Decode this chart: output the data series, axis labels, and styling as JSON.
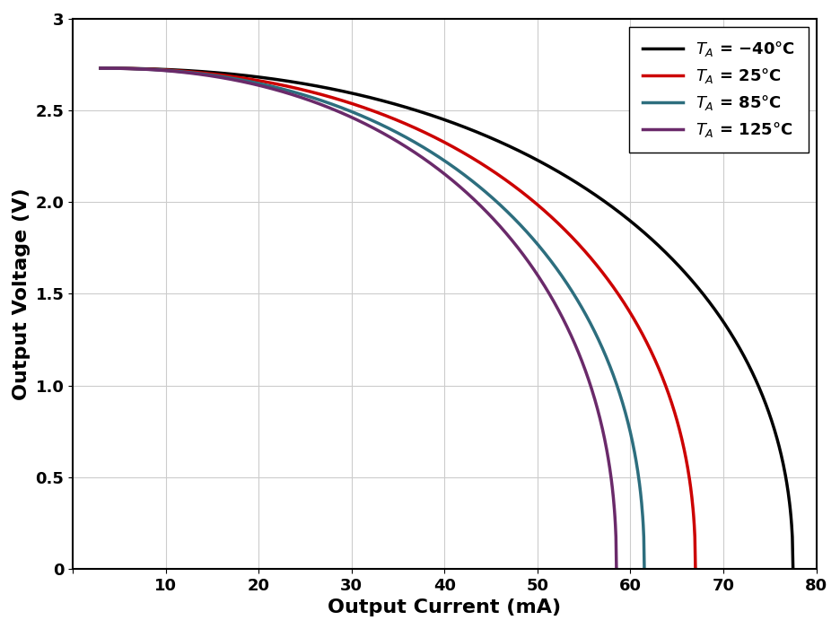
{
  "xlabel": "Output Current (mA)",
  "ylabel": "Output Voltage (V)",
  "xlim": [
    0,
    80
  ],
  "ylim": [
    0,
    3.0
  ],
  "xticks": [
    0,
    10,
    20,
    30,
    40,
    50,
    60,
    70,
    80
  ],
  "yticks": [
    0,
    0.5,
    1.0,
    1.5,
    2.0,
    2.5,
    3.0
  ],
  "curves": [
    {
      "label": "$T_A$ = −40°C",
      "color": "#000000",
      "Imax": 77.5,
      "Vstart": 2.73,
      "p": 2.2,
      "q": 0.45
    },
    {
      "label": "$T_A$ = 25°C",
      "color": "#cc0000",
      "Imax": 67.0,
      "Vstart": 2.73,
      "p": 2.2,
      "q": 0.45
    },
    {
      "label": "$T_A$ = 85°C",
      "color": "#2d6e7e",
      "Imax": 61.5,
      "Vstart": 2.73,
      "p": 2.2,
      "q": 0.45
    },
    {
      "label": "$T_A$ = 125°C",
      "color": "#6a2a6a",
      "Imax": 58.5,
      "Vstart": 2.73,
      "p": 2.2,
      "q": 0.45
    }
  ],
  "Istart": 3.0,
  "line_width": 2.5,
  "grid_color": "#cccccc",
  "bg_color": "#ffffff",
  "legend_fontsize": 13,
  "axis_fontsize": 16,
  "tick_fontsize": 13
}
